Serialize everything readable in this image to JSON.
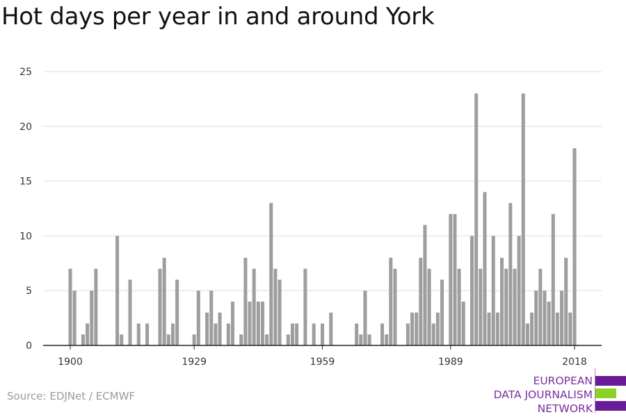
{
  "title": "Hot days per year in and around York",
  "source": "Source: EDJNet / ECMWF",
  "logo": {
    "line1": "EUROPEAN",
    "line2": "DATA JOURNALISM",
    "line3": "NETWORK"
  },
  "colors": {
    "bar": "#9e9e9e",
    "grid": "#dddddd",
    "axis": "#222222",
    "text": "#333333"
  },
  "chart_data": {
    "type": "bar",
    "title": "Hot days per year in and around York",
    "xlabel": "",
    "ylabel": "",
    "ylim": [
      0,
      25
    ],
    "yticks": [
      0,
      5,
      10,
      15,
      20,
      25
    ],
    "xticks": [
      1900,
      1929,
      1959,
      1989,
      2018
    ],
    "grid": true,
    "x": [
      1900,
      1901,
      1902,
      1903,
      1904,
      1905,
      1906,
      1907,
      1908,
      1909,
      1910,
      1911,
      1912,
      1913,
      1914,
      1915,
      1916,
      1917,
      1918,
      1919,
      1920,
      1921,
      1922,
      1923,
      1924,
      1925,
      1926,
      1927,
      1928,
      1929,
      1930,
      1931,
      1932,
      1933,
      1934,
      1935,
      1936,
      1937,
      1938,
      1939,
      1940,
      1941,
      1942,
      1943,
      1944,
      1945,
      1946,
      1947,
      1948,
      1949,
      1950,
      1951,
      1952,
      1953,
      1954,
      1955,
      1956,
      1957,
      1958,
      1959,
      1960,
      1961,
      1962,
      1963,
      1964,
      1965,
      1966,
      1967,
      1968,
      1969,
      1970,
      1971,
      1972,
      1973,
      1974,
      1975,
      1976,
      1977,
      1978,
      1979,
      1980,
      1981,
      1982,
      1983,
      1984,
      1985,
      1986,
      1987,
      1988,
      1989,
      1990,
      1991,
      1992,
      1993,
      1994,
      1995,
      1996,
      1997,
      1998,
      1999,
      2000,
      2001,
      2002,
      2003,
      2004,
      2005,
      2006,
      2007,
      2008,
      2009,
      2010,
      2011,
      2012,
      2013,
      2014,
      2015,
      2016,
      2017,
      2018
    ],
    "values": [
      7,
      5,
      0,
      1,
      2,
      5,
      7,
      0,
      0,
      0,
      0,
      10,
      1,
      0,
      6,
      0,
      2,
      0,
      2,
      0,
      0,
      7,
      8,
      1,
      2,
      6,
      0,
      0,
      0,
      1,
      5,
      0,
      3,
      5,
      2,
      3,
      0,
      2,
      4,
      0,
      1,
      8,
      4,
      7,
      4,
      4,
      1,
      13,
      7,
      6,
      0,
      1,
      2,
      2,
      0,
      7,
      0,
      2,
      0,
      2,
      0,
      3,
      0,
      0,
      0,
      0,
      0,
      2,
      1,
      5,
      1,
      0,
      0,
      2,
      1,
      8,
      7,
      0,
      0,
      2,
      3,
      3,
      8,
      11,
      7,
      2,
      3,
      6,
      0,
      12,
      12,
      7,
      4,
      0,
      10,
      23,
      7,
      14,
      3,
      10,
      3,
      8,
      7,
      13,
      7,
      10,
      23,
      2,
      3,
      5,
      7,
      5,
      4,
      12,
      3,
      5,
      8,
      3,
      18
    ]
  }
}
